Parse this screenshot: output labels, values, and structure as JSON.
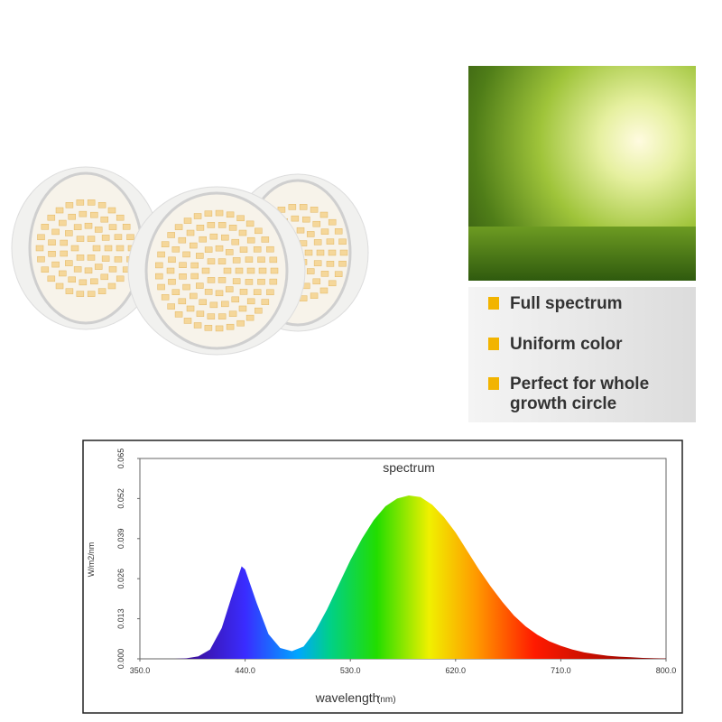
{
  "features": [
    "Full spectrum",
    "Uniform color",
    "Perfect for whole growth circle"
  ],
  "chart_data": {
    "type": "area",
    "title": "spectrum",
    "x_label": "wavelength",
    "x_unit": "(nm)",
    "y_label": "W/m2/nm",
    "x": [
      350,
      360,
      370,
      380,
      390,
      400,
      410,
      420,
      430,
      437,
      440,
      450,
      460,
      470,
      480,
      490,
      500,
      510,
      520,
      530,
      540,
      550,
      560,
      570,
      580,
      590,
      600,
      610,
      620,
      630,
      640,
      650,
      660,
      670,
      680,
      690,
      700,
      710,
      720,
      730,
      740,
      750,
      760,
      770,
      780,
      790,
      800
    ],
    "values": [
      0,
      0,
      0,
      0,
      0.0002,
      0.0008,
      0.003,
      0.01,
      0.022,
      0.03,
      0.029,
      0.018,
      0.008,
      0.0035,
      0.0025,
      0.004,
      0.009,
      0.016,
      0.024,
      0.032,
      0.039,
      0.045,
      0.0495,
      0.052,
      0.053,
      0.0525,
      0.05,
      0.046,
      0.041,
      0.035,
      0.029,
      0.0235,
      0.0185,
      0.014,
      0.0105,
      0.0078,
      0.0057,
      0.0042,
      0.003,
      0.0021,
      0.0015,
      0.001,
      0.0007,
      0.0005,
      0.0003,
      0.0002,
      0.0001
    ],
    "xlim": [
      350,
      800
    ],
    "xticks": [
      {
        "value": 350,
        "label": "350.0"
      },
      {
        "value": 440,
        "label": "440.0"
      },
      {
        "value": 530,
        "label": "530.0"
      },
      {
        "value": 620,
        "label": "620.0"
      },
      {
        "value": 710,
        "label": "710.0"
      },
      {
        "value": 800,
        "label": "800.0"
      }
    ],
    "ylim": [
      0,
      0.065
    ],
    "yticks": [
      {
        "value": 0,
        "label": "0.000"
      },
      {
        "value": 0.013,
        "label": "0.013"
      },
      {
        "value": 0.026,
        "label": "0.026"
      },
      {
        "value": 0.039,
        "label": "0.039"
      },
      {
        "value": 0.052,
        "label": "0.052"
      },
      {
        "value": 0.065,
        "label": "0.065"
      }
    ]
  }
}
